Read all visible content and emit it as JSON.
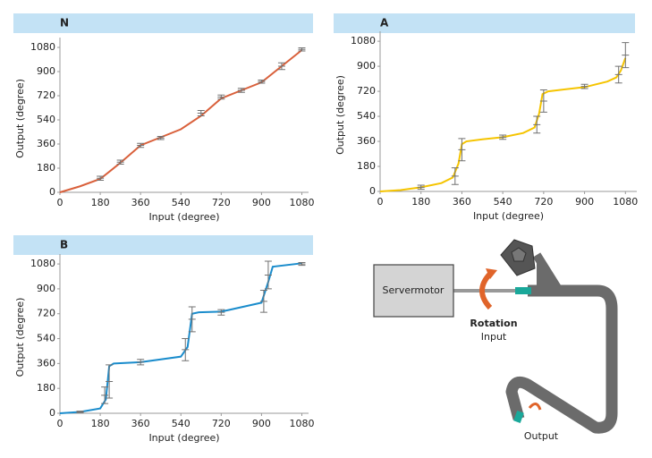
{
  "chart_data": [
    {
      "type": "line",
      "title": "N",
      "xlabel": "Input (degree)",
      "ylabel": "Output (degree)",
      "xlim": [
        0,
        1110
      ],
      "ylim": [
        0,
        1100
      ],
      "xticks": [
        0,
        180,
        360,
        540,
        720,
        900,
        1080
      ],
      "yticks": [
        0,
        180,
        360,
        540,
        720,
        900,
        1080
      ],
      "grid": false,
      "x": [
        0,
        90,
        180,
        270,
        360,
        450,
        540,
        630,
        720,
        810,
        900,
        990,
        1080
      ],
      "series": [
        {
          "color": "#d9603b",
          "values": [
            0,
            45,
            100,
            220,
            350,
            410,
            470,
            570,
            700,
            760,
            820,
            940,
            1060
          ]
        }
      ],
      "measurements": {
        "color": "#707070",
        "x": [
          180,
          270,
          360,
          450,
          630,
          720,
          810,
          900,
          990,
          1080
        ],
        "values": [
          105,
          225,
          350,
          405,
          590,
          710,
          760,
          825,
          940,
          1065
        ],
        "errors": [
          15,
          15,
          15,
          12,
          20,
          15,
          15,
          12,
          25,
          12
        ]
      }
    },
    {
      "type": "line",
      "title": "A",
      "xlabel": "Input (degree)",
      "ylabel": "Output (degree)",
      "xlim": [
        0,
        1130
      ],
      "ylim": [
        0,
        1100
      ],
      "xticks": [
        0,
        180,
        360,
        540,
        720,
        900,
        1080
      ],
      "yticks": [
        0,
        180,
        360,
        540,
        720,
        900,
        1080
      ],
      "grid": false,
      "x": [
        0,
        90,
        180,
        270,
        320,
        345,
        360,
        380,
        450,
        540,
        630,
        680,
        700,
        715,
        740,
        900,
        1000,
        1040,
        1060,
        1080
      ],
      "series": [
        {
          "color": "#f5c400",
          "values": [
            0,
            10,
            30,
            60,
            100,
            200,
            340,
            360,
            375,
            390,
            420,
            460,
            560,
            700,
            720,
            750,
            790,
            820,
            870,
            960
          ]
        }
      ],
      "measurements": {
        "color": "#707070",
        "x": [
          180,
          330,
          360,
          540,
          690,
          720,
          900,
          1050,
          1080
        ],
        "values": [
          30,
          110,
          300,
          390,
          480,
          650,
          755,
          840,
          980
        ],
        "errors": [
          15,
          60,
          80,
          15,
          60,
          80,
          15,
          60,
          90
        ]
      }
    },
    {
      "type": "line",
      "title": "B",
      "xlabel": "Input (degree)",
      "ylabel": "Output (degree)",
      "xlim": [
        0,
        1110
      ],
      "ylim": [
        0,
        1100
      ],
      "xticks": [
        0,
        180,
        360,
        540,
        720,
        900,
        1080
      ],
      "yticks": [
        0,
        180,
        360,
        540,
        720,
        900,
        1080
      ],
      "grid": false,
      "x": [
        0,
        90,
        180,
        205,
        220,
        240,
        360,
        540,
        570,
        590,
        620,
        720,
        900,
        930,
        950,
        1080
      ],
      "series": [
        {
          "color": "#1a8ccc",
          "values": [
            0,
            10,
            35,
            100,
            340,
            360,
            370,
            410,
            480,
            720,
            730,
            735,
            800,
            950,
            1060,
            1085
          ]
        }
      ],
      "measurements": {
        "color": "#707070",
        "x": [
          90,
          200,
          220,
          360,
          560,
          590,
          720,
          910,
          930,
          1080
        ],
        "values": [
          10,
          130,
          230,
          370,
          460,
          680,
          730,
          810,
          1000,
          1080
        ],
        "errors": [
          5,
          60,
          120,
          20,
          80,
          90,
          20,
          80,
          100,
          10
        ]
      }
    }
  ],
  "diagram": {
    "motor": "Servermotor",
    "rotation": "Rotation",
    "input": "Input",
    "output": "Output"
  }
}
